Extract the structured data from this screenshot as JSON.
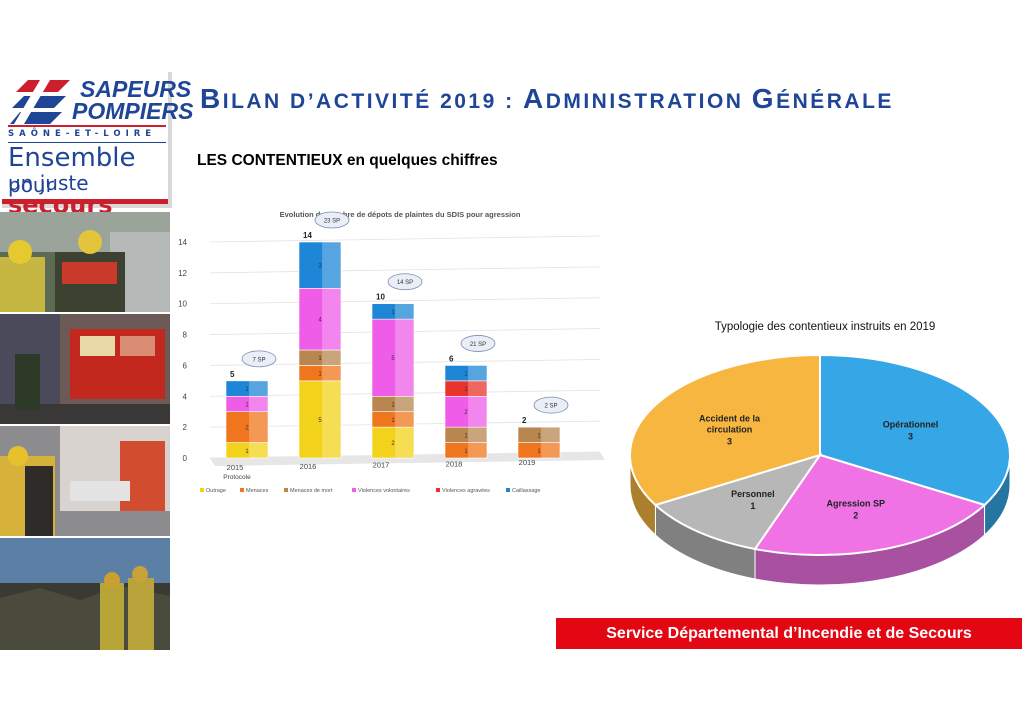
{
  "header": {
    "title_parts": [
      "B",
      "ILAN D’ACTIVITÉ 2019 : ",
      "A",
      "DMINISTRATION ",
      "G",
      "ÉNÉRALE"
    ],
    "subtitle": "LES CONTENTIEUX en quelques chiffres"
  },
  "logo": {
    "line1": "SAPEURS",
    "line2": "POMPIERS",
    "department": "SAÔNE-ET-LOIRE",
    "slogan_a": "Ensemble",
    "slogan_b": "pour",
    "slogan_c": "un juste",
    "slogan_d": "secours",
    "colors": {
      "blue": "#1f4597",
      "red": "#cc1f2d"
    }
  },
  "footer": {
    "text": "Service Départemental d’Incendie et de Secours"
  },
  "chart_data": [
    {
      "type": "bar",
      "stacked": true,
      "title": "Evolution du nombre de dépots de plaintes du SDIS pour agression",
      "categories": [
        "2015",
        "2016",
        "2017",
        "2018",
        "2019"
      ],
      "category_notes": [
        "Protocole",
        "",
        "",
        "",
        ""
      ],
      "ylim": [
        0,
        14
      ],
      "yticks": [
        0,
        2,
        4,
        6,
        8,
        10,
        12,
        14
      ],
      "grid": true,
      "legend_position": "bottom",
      "totals": [
        5,
        14,
        10,
        6,
        2
      ],
      "sp_counts": [
        "7 SP",
        "23 SP",
        "14 SP",
        "21 SP",
        "2 SP"
      ],
      "series": [
        {
          "name": "Outrage",
          "color": "#f2d21b",
          "values": [
            1,
            5,
            2,
            0,
            0
          ]
        },
        {
          "name": "Menaces",
          "color": "#f0761e",
          "values": [
            2,
            1,
            1,
            1,
            1
          ]
        },
        {
          "name": "Menaces de mort",
          "color": "#b8864e",
          "values": [
            0,
            1,
            1,
            1,
            1
          ]
        },
        {
          "name": "Violences volontaires",
          "color": "#ee5ce8",
          "values": [
            1,
            4,
            5,
            2,
            0
          ]
        },
        {
          "name": "Violences agravées",
          "color": "#e8342c",
          "values": [
            0,
            0,
            0,
            1,
            0
          ]
        },
        {
          "name": "Caillassage",
          "color": "#1e86d6",
          "values": [
            1,
            3,
            1,
            1,
            0
          ]
        }
      ]
    },
    {
      "type": "pie",
      "title": "Typologie des contentieux instruits en 2019",
      "slices": [
        {
          "label": "Opérationnel",
          "value": 3,
          "color": "#35a7e6"
        },
        {
          "label": "Agression SP",
          "value": 2,
          "color": "#ef73e5"
        },
        {
          "label": "Personnel",
          "value": 1,
          "color": "#b7b7b7"
        },
        {
          "label": "Accident de la circulation",
          "value": 3,
          "color": "#f6b640"
        }
      ]
    }
  ]
}
